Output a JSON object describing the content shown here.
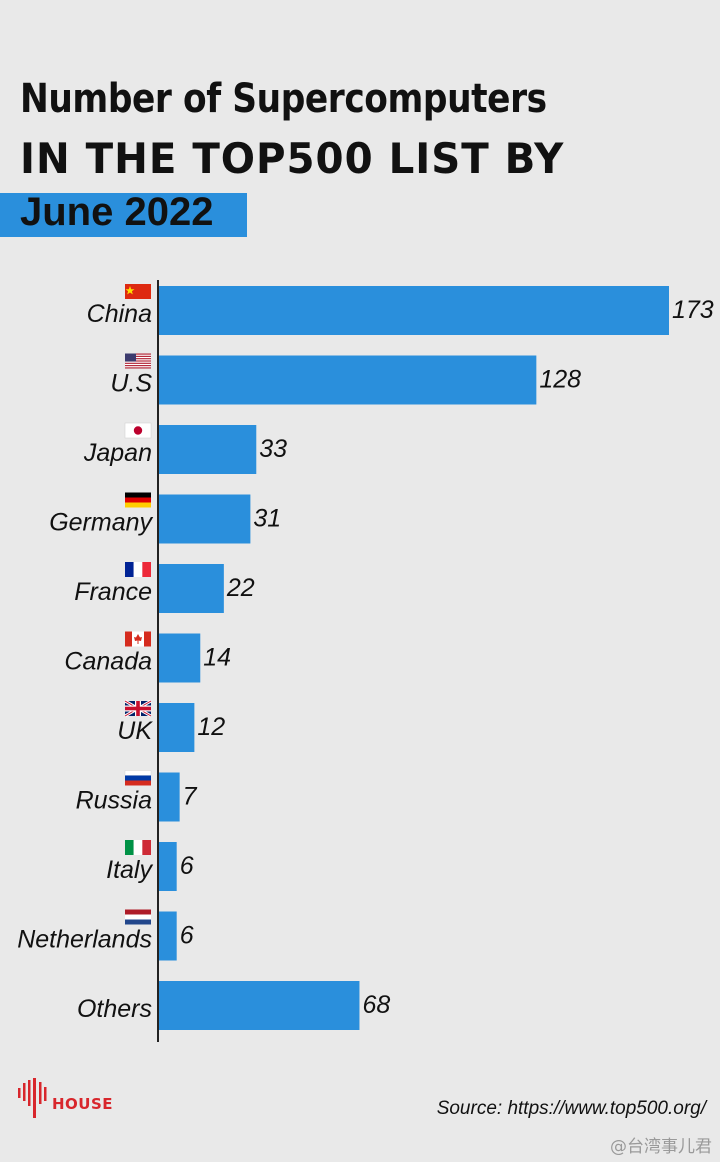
{
  "header": {
    "title_line1": "Number of Supercomputers",
    "title_line2": "IN THE TOP500 LIST BY",
    "subtitle": "June 2022"
  },
  "chart_data": {
    "type": "bar",
    "orientation": "horizontal",
    "title": "Number of Supercomputers IN THE TOP500 LIST BY June 2022",
    "xlabel": "",
    "ylabel": "",
    "xlim": [
      0,
      173
    ],
    "grid": false,
    "legend": "none",
    "bar_color": "#2a8fdc",
    "categories": [
      "China",
      "U.S",
      "Japan",
      "Germany",
      "France",
      "Canada",
      "UK",
      "Russia",
      "Italy",
      "Netherlands",
      "Others"
    ],
    "values": [
      173,
      128,
      33,
      31,
      22,
      14,
      12,
      7,
      6,
      6,
      68
    ],
    "flags": [
      "china-flag-icon",
      "us-flag-icon",
      "japan-flag-icon",
      "germany-flag-icon",
      "france-flag-icon",
      "canada-flag-icon",
      "uk-flag-icon",
      "russia-flag-icon",
      "italy-flag-icon",
      "netherlands-flag-icon",
      ""
    ]
  },
  "footer": {
    "logo_text": "HOUSE",
    "source": "Source: https://www.top500.org/",
    "watermark": "@台湾事儿君"
  }
}
